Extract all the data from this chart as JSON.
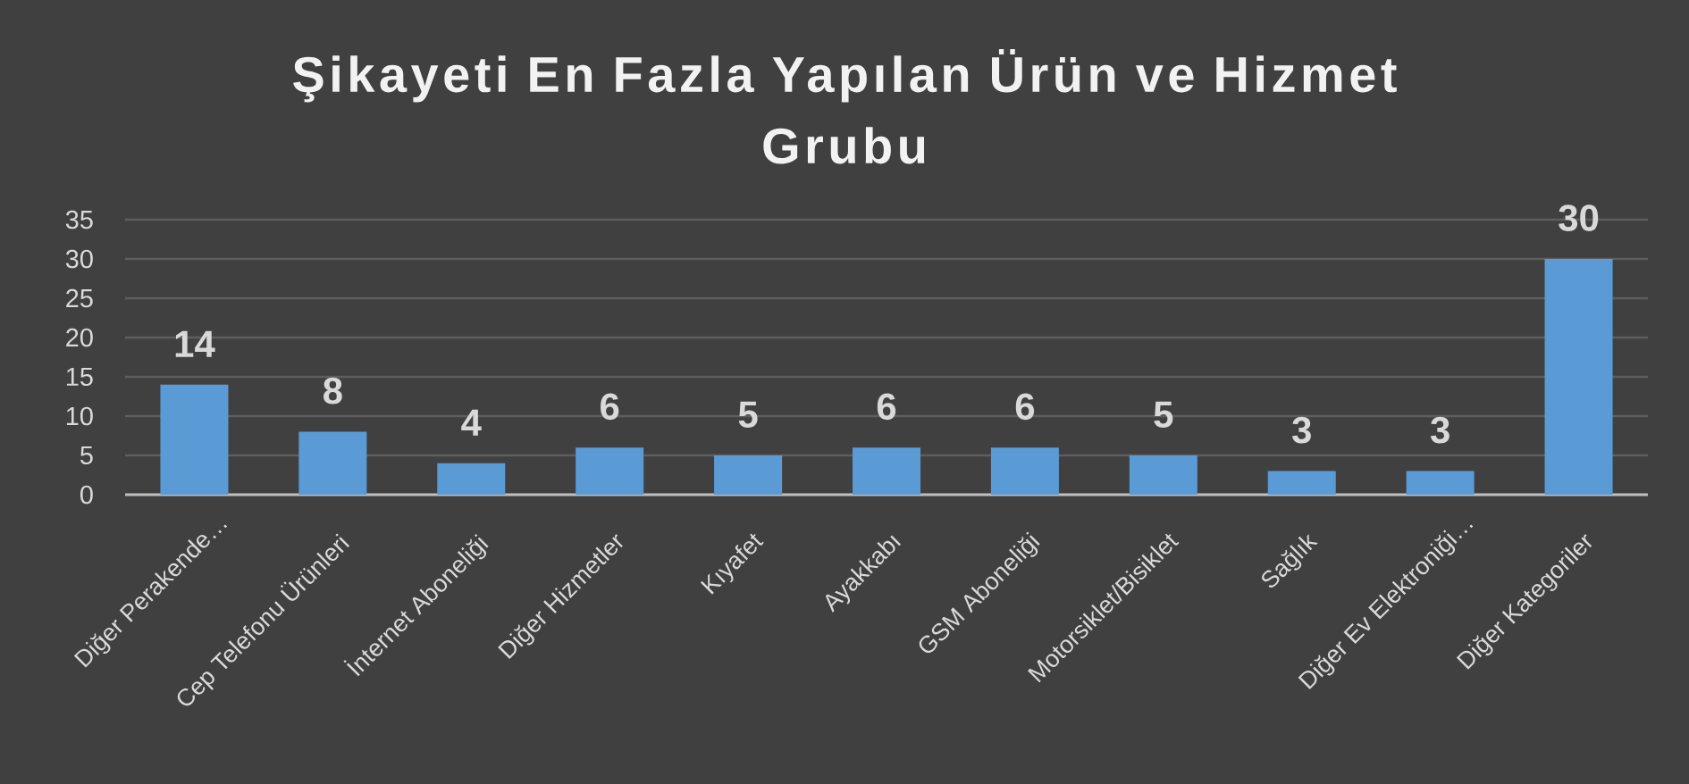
{
  "chart_data": {
    "type": "bar",
    "title": "Şikayeti En Fazla Yapılan Ürün ve Hizmet Grubu",
    "categories": [
      "Diğer Perakende…",
      "Cep Telefonu Ürünleri",
      "İnternet Aboneliği",
      "Diğer Hizmetler",
      "Kıyafet",
      "Ayakkabı",
      "GSM Aboneliği",
      "Motorsiklet/Bisiklet",
      "Sağlık",
      "Diğer Ev Elektroniği…",
      "Diğer Kategoriler"
    ],
    "values": [
      14,
      8,
      4,
      6,
      5,
      6,
      6,
      5,
      3,
      3,
      30
    ],
    "color": "#5b9bd5",
    "ylim": [
      0,
      35
    ],
    "yticks": [
      0,
      5,
      10,
      15,
      20,
      25,
      30,
      35
    ],
    "grid": "y",
    "data_labels": true
  }
}
